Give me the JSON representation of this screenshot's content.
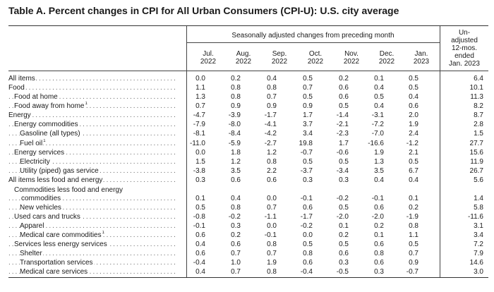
{
  "title": "Table A. Percent changes in CPI for All Urban Consumers (CPI-U): U.S. city average",
  "header": {
    "spanning": "Seasonally adjusted changes from preceding month",
    "months": [
      {
        "line1": "Jul.",
        "line2": "2022"
      },
      {
        "line1": "Aug.",
        "line2": "2022"
      },
      {
        "line1": "Sep.",
        "line2": "2022"
      },
      {
        "line1": "Oct.",
        "line2": "2022"
      },
      {
        "line1": "Nov.",
        "line2": "2022"
      },
      {
        "line1": "Dec.",
        "line2": "2022"
      },
      {
        "line1": "Jan.",
        "line2": "2023"
      }
    ],
    "unadjusted": [
      "Un-",
      "adjusted",
      "12-mos.",
      "ended",
      "Jan. 2023"
    ]
  },
  "rows": [
    {
      "label": "All items",
      "sup": "",
      "values": [
        "0.0",
        "0.2",
        "0.4",
        "0.5",
        "0.2",
        "0.1",
        "0.5",
        "6.4"
      ]
    },
    {
      "label": "Food",
      "sup": "",
      "values": [
        "1.1",
        "0.8",
        "0.8",
        "0.7",
        "0.6",
        "0.4",
        "0.5",
        "10.1"
      ]
    },
    {
      "label": "Food at home",
      "sup": "",
      "values": [
        "1.3",
        "0.8",
        "0.7",
        "0.5",
        "0.6",
        "0.5",
        "0.4",
        "11.3"
      ]
    },
    {
      "label": "Food away from home",
      "sup": "1",
      "values": [
        "0.7",
        "0.9",
        "0.9",
        "0.9",
        "0.5",
        "0.4",
        "0.6",
        "8.2"
      ]
    },
    {
      "label": "Energy",
      "sup": "",
      "values": [
        "-4.7",
        "-3.9",
        "-1.7",
        "1.7",
        "-1.4",
        "-3.1",
        "2.0",
        "8.7"
      ]
    },
    {
      "label": "Energy commodities",
      "sup": "",
      "values": [
        "-7.9",
        "-8.0",
        "-4.1",
        "3.7",
        "-2.1",
        "-7.2",
        "1.9",
        "2.8"
      ]
    },
    {
      "label": "Gasoline (all types)",
      "sup": "",
      "values": [
        "-8.1",
        "-8.4",
        "-4.2",
        "3.4",
        "-2.3",
        "-7.0",
        "2.4",
        "1.5"
      ]
    },
    {
      "label": "Fuel oil",
      "sup": "1",
      "values": [
        "-11.0",
        "-5.9",
        "-2.7",
        "19.8",
        "1.7",
        "-16.6",
        "-1.2",
        "27.7"
      ]
    },
    {
      "label": "Energy services",
      "sup": "",
      "values": [
        "0.0",
        "1.8",
        "1.2",
        "-0.7",
        "-0.6",
        "1.9",
        "2.1",
        "15.6"
      ]
    },
    {
      "label": "Electricity",
      "sup": "",
      "values": [
        "1.5",
        "1.2",
        "0.8",
        "0.5",
        "0.5",
        "1.3",
        "0.5",
        "11.9"
      ]
    },
    {
      "label": "Utility (piped) gas service",
      "sup": "",
      "values": [
        "-3.8",
        "3.5",
        "2.2",
        "-3.7",
        "-3.4",
        "3.5",
        "6.7",
        "26.7"
      ]
    },
    {
      "label": "All items less food and energy",
      "sup": "",
      "values": [
        "0.3",
        "0.6",
        "0.6",
        "0.3",
        "0.3",
        "0.4",
        "0.4",
        "5.6"
      ]
    },
    {
      "label": "Commodities less food and energy",
      "sup": "",
      "values": [
        "",
        "",
        "",
        "",
        "",
        "",
        "",
        ""
      ]
    },
    {
      "label": "commodities",
      "sup": "",
      "values": [
        "0.1",
        "0.4",
        "0.0",
        "-0.1",
        "-0.2",
        "-0.1",
        "0.1",
        "1.4"
      ]
    },
    {
      "label": "New vehicles",
      "sup": "",
      "values": [
        "0.5",
        "0.8",
        "0.7",
        "0.6",
        "0.5",
        "0.6",
        "0.2",
        "5.8"
      ]
    },
    {
      "label": "Used cars and trucks",
      "sup": "",
      "values": [
        "-0.8",
        "-0.2",
        "-1.1",
        "-1.7",
        "-2.0",
        "-2.0",
        "-1.9",
        "-11.6"
      ]
    },
    {
      "label": "Apparel",
      "sup": "",
      "values": [
        "-0.1",
        "0.3",
        "0.0",
        "-0.2",
        "0.1",
        "0.2",
        "0.8",
        "3.1"
      ]
    },
    {
      "label": "Medical care commodities",
      "sup": "1",
      "values": [
        "0.6",
        "0.2",
        "-0.1",
        "0.0",
        "0.2",
        "0.1",
        "1.1",
        "3.4"
      ]
    },
    {
      "label": "Services less energy services",
      "sup": "",
      "values": [
        "0.4",
        "0.6",
        "0.8",
        "0.5",
        "0.5",
        "0.6",
        "0.5",
        "7.2"
      ]
    },
    {
      "label": "Shelter",
      "sup": "",
      "values": [
        "0.6",
        "0.7",
        "0.7",
        "0.8",
        "0.6",
        "0.8",
        "0.7",
        "7.9"
      ]
    },
    {
      "label": "Transportation services",
      "sup": "",
      "values": [
        "-0.4",
        "1.0",
        "1.9",
        "0.6",
        "0.3",
        "0.6",
        "0.9",
        "14.6"
      ]
    },
    {
      "label": "Medical care services",
      "sup": "",
      "values": [
        "0.4",
        "0.7",
        "0.8",
        "-0.4",
        "-0.5",
        "0.3",
        "-0.7",
        "3.0"
      ]
    }
  ]
}
